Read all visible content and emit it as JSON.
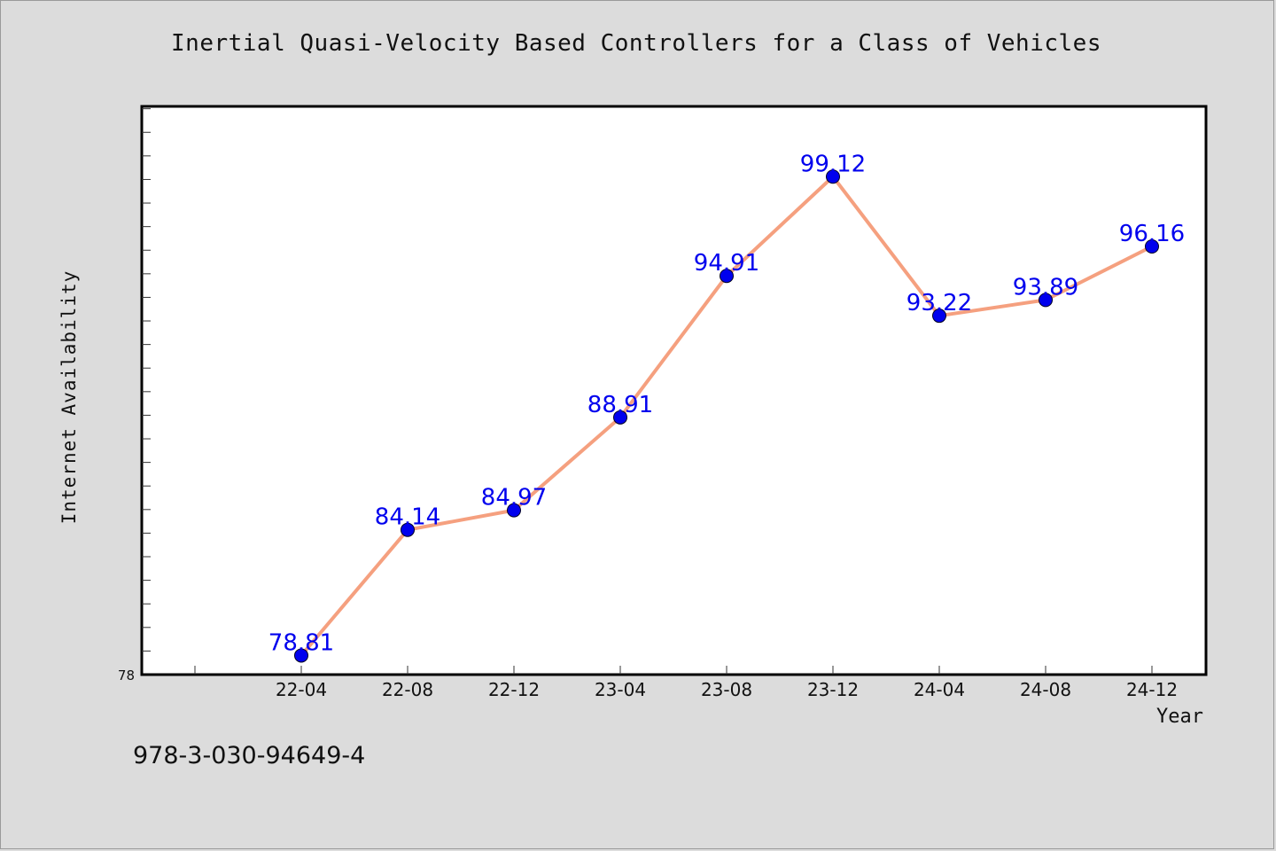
{
  "chart_data": {
    "type": "line",
    "title": "Inertial Quasi-Velocity Based Controllers for a Class of Vehicles",
    "xlabel": "Year",
    "ylabel": "Internet Availability",
    "categories": [
      "22-04",
      "22-08",
      "22-12",
      "23-04",
      "23-08",
      "23-12",
      "24-04",
      "24-08",
      "24-12"
    ],
    "series": [
      {
        "values": [
          78.81,
          84.14,
          84.97,
          88.91,
          94.91,
          99.12,
          93.22,
          93.89,
          96.16
        ]
      }
    ],
    "data_labels": [
      "78.81",
      "84.14",
      "84.97",
      "88.91",
      "94.91",
      "99.12",
      "93.22",
      "93.89",
      "96.16"
    ],
    "ylim": [
      78,
      102.1
    ],
    "ytick_labels": [
      "78"
    ],
    "grid": false,
    "legend": false,
    "colors": {
      "line": "#f5a07f",
      "marker": "#0000ee",
      "label": "#0000ee",
      "background": "#dcdcdc",
      "plot_background": "#ffffff"
    }
  },
  "footer": {
    "isbn": "978-3-030-94649-4"
  }
}
